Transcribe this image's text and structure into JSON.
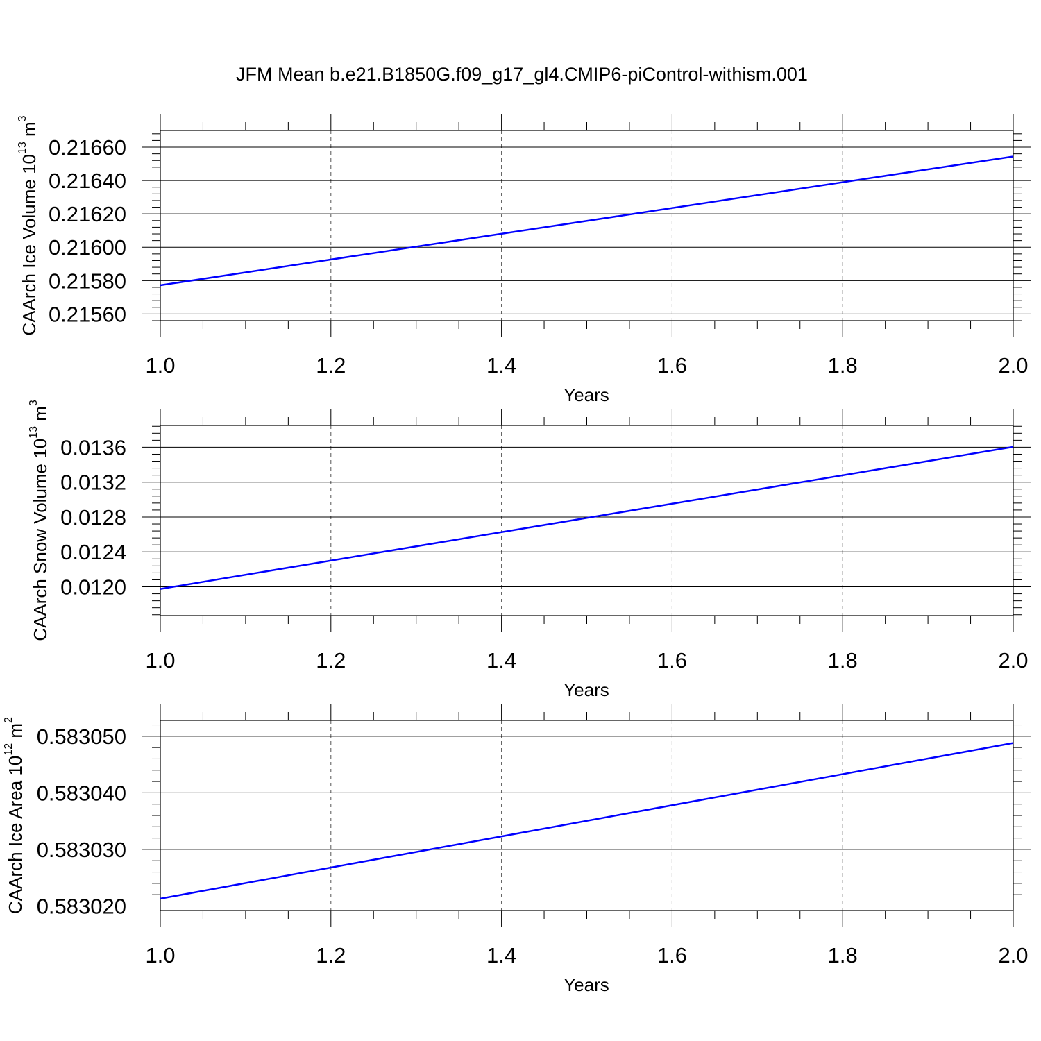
{
  "title": "JFM Mean b.e21.B1850G.f09_g17_gl4.CMIP6-piControl-withism.001",
  "colors": {
    "line": "#0000ff",
    "frame": "#000000",
    "grid": "#555555"
  },
  "chart_data": [
    {
      "type": "line",
      "title": "",
      "xlabel": "Years",
      "ylabel": {
        "text": "CAArch Ice Volume 10",
        "exponent": "13",
        "unit": "m",
        "unit_exponent": "3"
      },
      "xlim": [
        1.0,
        2.0
      ],
      "ylim": [
        0.21556,
        0.2167
      ],
      "x_ticks": [
        "1.0",
        "1.2",
        "1.4",
        "1.6",
        "1.8",
        "2.0"
      ],
      "y_ticks": [
        "0.21560",
        "0.21580",
        "0.21600",
        "0.21620",
        "0.21640",
        "0.21660"
      ],
      "x_grid": true,
      "series": [
        {
          "x": [
            1.0,
            2.0
          ],
          "y": [
            0.215772,
            0.216544
          ]
        }
      ]
    },
    {
      "type": "line",
      "title": "",
      "xlabel": "Years",
      "ylabel": {
        "text": "CAArch Snow Volume 10",
        "exponent": "13",
        "unit": "m",
        "unit_exponent": "3"
      },
      "xlim": [
        1.0,
        2.0
      ],
      "ylim": [
        0.01167,
        0.01385
      ],
      "x_ticks": [
        "1.0",
        "1.2",
        "1.4",
        "1.6",
        "1.8",
        "2.0"
      ],
      "y_ticks": [
        "0.0120",
        "0.0124",
        "0.0128",
        "0.0132",
        "0.0136"
      ],
      "x_grid": true,
      "series": [
        {
          "x": [
            1.0,
            2.0
          ],
          "y": [
            0.011975,
            0.013604
          ]
        }
      ]
    },
    {
      "type": "line",
      "title": "",
      "xlabel": "Years",
      "ylabel": {
        "text": "CAArch Ice Area 10",
        "exponent": "12",
        "unit": "m",
        "unit_exponent": "2"
      },
      "xlim": [
        1.0,
        2.0
      ],
      "ylim": [
        583019.2,
        583052.8
      ],
      "x_ticks": [
        "1.0",
        "1.2",
        "1.4",
        "1.6",
        "1.8",
        "2.0"
      ],
      "y_ticks": [
        "0.583020",
        "0.583030",
        "0.583040",
        "0.583050"
      ],
      "x_grid": true,
      "series": [
        {
          "x": [
            1.0,
            2.0
          ],
          "y": [
            583021.3,
            583048.8
          ]
        }
      ]
    }
  ]
}
